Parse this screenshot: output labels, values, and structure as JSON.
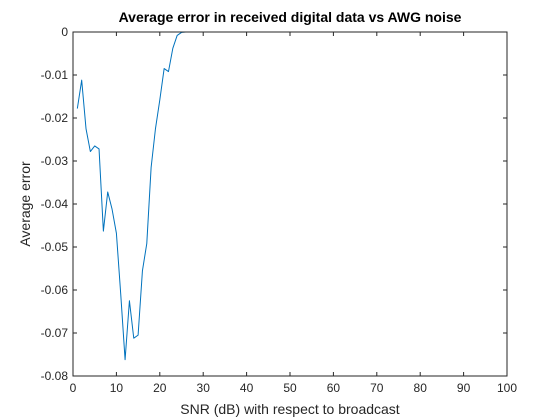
{
  "chart_data": {
    "type": "line",
    "title": "Average error in received digital data vs AWG noise",
    "xlabel": "SNR (dB) with respect to broadcast",
    "ylabel": "Average error",
    "xlim": [
      0,
      100
    ],
    "ylim": [
      -0.08,
      0
    ],
    "xticks": [
      0,
      10,
      20,
      30,
      40,
      50,
      60,
      70,
      80,
      90,
      100
    ],
    "xtick_labels": [
      "0",
      "10",
      "20",
      "30",
      "40",
      "50",
      "60",
      "70",
      "80",
      "90",
      "100"
    ],
    "yticks": [
      0,
      -0.01,
      -0.02,
      -0.03,
      -0.04,
      -0.05,
      -0.06,
      -0.07,
      -0.08
    ],
    "ytick_labels": [
      "0",
      "-0.01",
      "-0.02",
      "-0.03",
      "-0.04",
      "-0.05",
      "-0.06",
      "-0.07",
      "-0.08"
    ],
    "grid": false,
    "box": true,
    "line_color": "#0072BD",
    "series": [
      {
        "x": [
          1,
          2,
          3,
          4,
          5,
          6,
          7,
          8,
          9,
          10,
          11,
          12,
          13,
          14,
          15,
          16,
          17,
          18,
          19,
          20,
          21,
          22,
          23,
          24,
          25,
          26,
          27,
          28,
          29,
          30,
          35,
          40,
          45,
          50,
          55,
          60,
          65,
          70,
          75,
          80,
          85,
          90,
          95,
          100
        ],
        "y": [
          -0.0178,
          -0.0112,
          -0.0225,
          -0.0278,
          -0.0265,
          -0.0272,
          -0.0463,
          -0.0372,
          -0.0412,
          -0.0468,
          -0.061,
          -0.0762,
          -0.0625,
          -0.0712,
          -0.0705,
          -0.0555,
          -0.0492,
          -0.0315,
          -0.0225,
          -0.0158,
          -0.0085,
          -0.0092,
          -0.0038,
          -0.0008,
          -0.0001,
          0,
          0,
          0,
          0,
          0,
          0,
          0,
          0,
          0,
          0,
          0,
          0,
          0,
          0,
          0,
          0,
          0,
          0,
          0
        ]
      }
    ]
  }
}
